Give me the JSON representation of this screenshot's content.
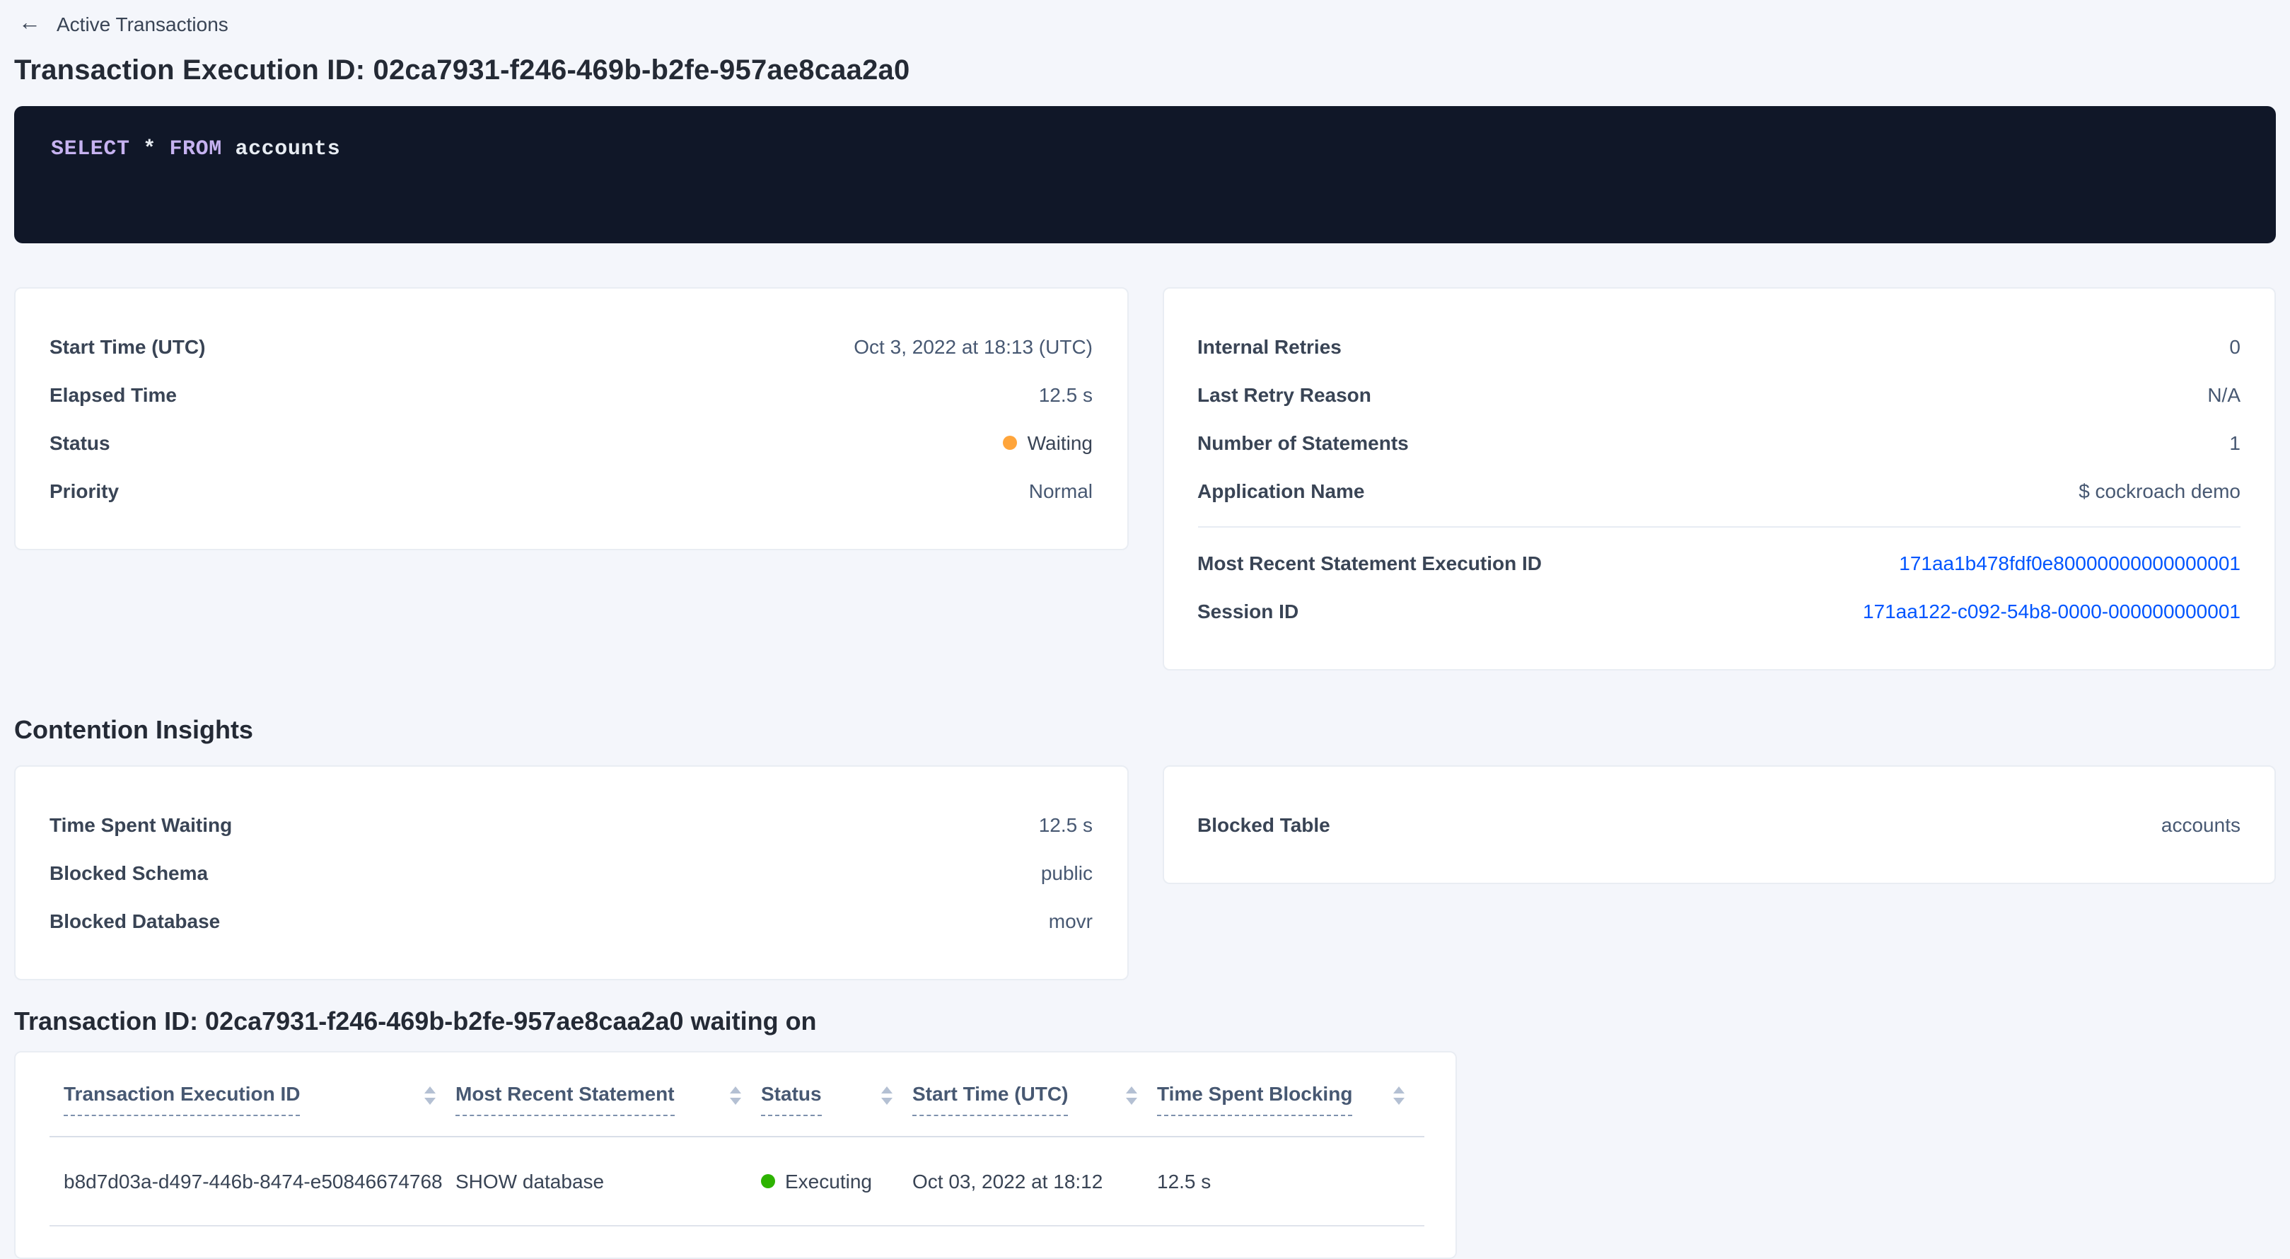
{
  "colors": {
    "link": "#0055ff",
    "status_waiting": "#ffa53b",
    "status_executing": "#2db300",
    "sql_background": "#101728",
    "page_background": "#f4f6fb"
  },
  "breadcrumb": {
    "back_icon": "←",
    "label": "Active Transactions"
  },
  "header": {
    "title": "Transaction Execution ID: 02ca7931-f246-469b-b2fe-957ae8caa2a0"
  },
  "sql": {
    "tokens": [
      "SELECT",
      " * ",
      "FROM",
      " accounts"
    ]
  },
  "summary": {
    "left": {
      "rows": [
        {
          "label": "Start Time (UTC)",
          "value": "Oct 3, 2022 at 18:13 (UTC)"
        },
        {
          "label": "Elapsed Time",
          "value": "12.5 s"
        },
        {
          "label": "Status",
          "value": "Waiting",
          "status_color": "#ffa53b"
        },
        {
          "label": "Priority",
          "value": "Normal"
        }
      ]
    },
    "right": {
      "rows_top": [
        {
          "label": "Internal Retries",
          "value": "0"
        },
        {
          "label": "Last Retry Reason",
          "value": "N/A"
        },
        {
          "label": "Number of Statements",
          "value": "1"
        },
        {
          "label": "Application Name",
          "value": "$ cockroach demo"
        }
      ],
      "rows_links": [
        {
          "label": "Most Recent Statement Execution ID",
          "value": "171aa1b478fdf0e80000000000000001"
        },
        {
          "label": "Session ID",
          "value": "171aa122-c092-54b8-0000-000000000001"
        }
      ]
    }
  },
  "contention": {
    "heading": "Contention Insights",
    "left": {
      "rows": [
        {
          "label": "Time Spent Waiting",
          "value": "12.5 s"
        },
        {
          "label": "Blocked Schema",
          "value": "public"
        },
        {
          "label": "Blocked Database",
          "value": "movr"
        }
      ]
    },
    "right": {
      "rows": [
        {
          "label": "Blocked Table",
          "value": "accounts"
        }
      ]
    }
  },
  "waiting": {
    "heading": "Transaction ID: 02ca7931-f246-469b-b2fe-957ae8caa2a0 waiting on",
    "table": {
      "columns": [
        "Transaction Execution ID",
        "Most Recent Statement",
        "Status",
        "Start Time (UTC)",
        "Time Spent Blocking"
      ],
      "rows": [
        {
          "transaction_execution_id": "b8d7d03a-d497-446b-8474-e50846674768",
          "most_recent_statement": "SHOW database",
          "status": "Executing",
          "status_color": "#2db300",
          "start_time": "Oct 03, 2022 at 18:12",
          "time_spent_blocking": "12.5 s"
        }
      ]
    }
  }
}
